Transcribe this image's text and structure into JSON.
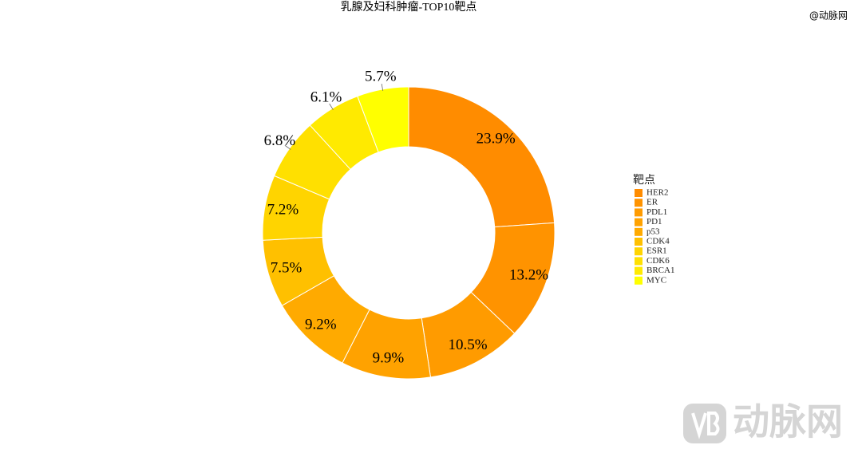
{
  "chart_data": {
    "type": "donut",
    "title": "乳腺及妇科肿瘤-TOP10靶点",
    "watermark": "@动脉网",
    "logo_text": "动脉网",
    "legend_title": "靶点",
    "categories": [
      "HER2",
      "ER",
      "PDL1",
      "PD1",
      "p53",
      "CDK4",
      "ESR1",
      "CDK6",
      "BRCA1",
      "MYC"
    ],
    "values": [
      23.9,
      13.2,
      10.5,
      9.9,
      9.2,
      7.5,
      7.2,
      6.8,
      6.1,
      5.7
    ],
    "value_labels": [
      "23.9%",
      "13.2%",
      "10.5%",
      "9.9%",
      "9.2%",
      "7.5%",
      "7.2%",
      "6.8%",
      "6.1%",
      "5.7%"
    ],
    "colors": [
      "#FF8C00",
      "#FF9300",
      "#FF9B00",
      "#FFA200",
      "#FFAA00",
      "#FFC000",
      "#FFD400",
      "#FFE000",
      "#FFEA00",
      "#FFFF00"
    ],
    "legend": "right"
  }
}
